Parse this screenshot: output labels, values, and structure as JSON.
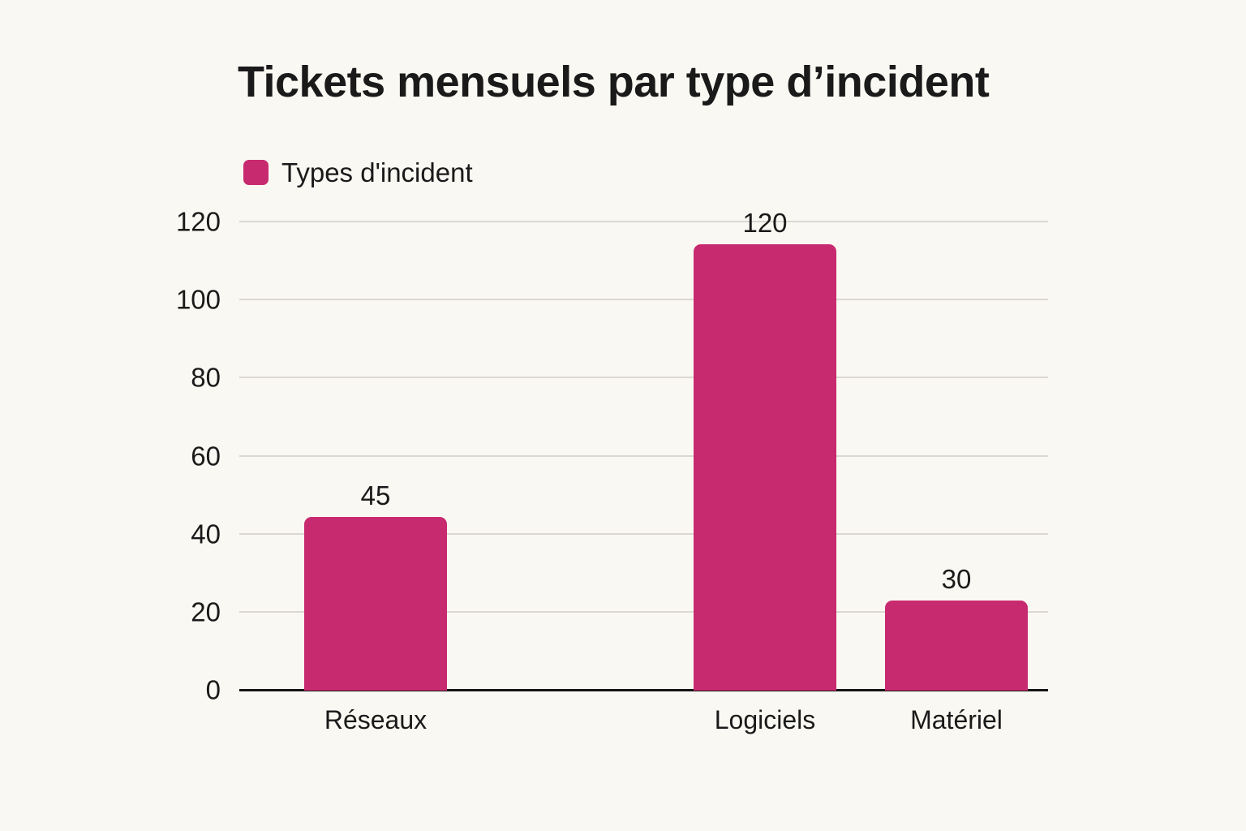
{
  "title": "Tickets mensuels par type d’incident",
  "legend": {
    "label": "Types d'incident",
    "swatch_color": "#c82a70"
  },
  "chart_data": {
    "type": "bar",
    "title": "Tickets mensuels par type d’incident",
    "categories": [
      "Réseaux",
      "Logiciels",
      "Matériel"
    ],
    "series": [
      {
        "name": "Types d'incident",
        "values": [
          45,
          120,
          30
        ]
      }
    ],
    "value_labels": [
      "45",
      "120",
      "30"
    ],
    "xlabel": "",
    "ylabel": "",
    "ylim": [
      0,
      120
    ],
    "yticks": [
      0,
      20,
      40,
      60,
      80,
      100,
      120
    ],
    "grid": true,
    "legend_position": "top-left",
    "bar_color": "#c82a70",
    "background_color": "#faf8f2",
    "axis_color": "#141414",
    "gridline_color": "#dcd8d1",
    "text_color": "#1a1a1a"
  }
}
